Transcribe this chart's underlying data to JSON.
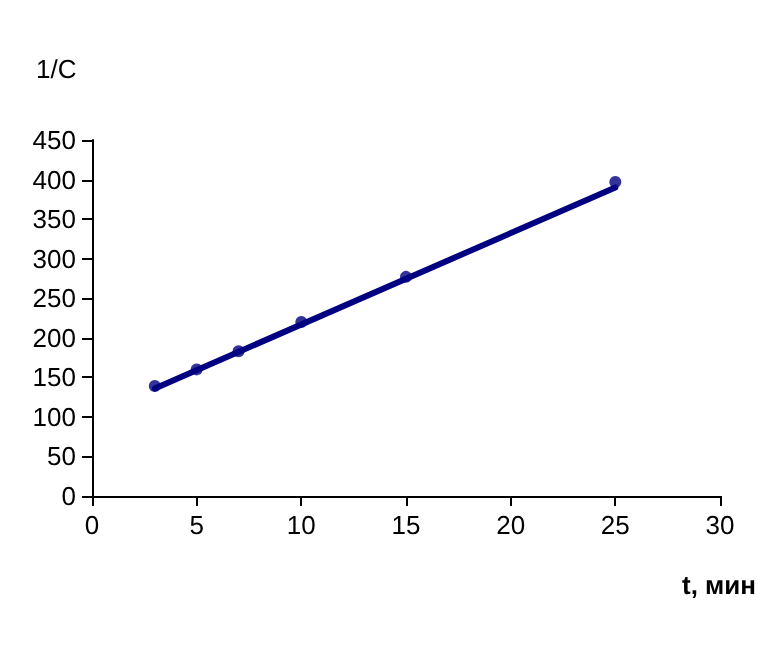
{
  "chart_data": {
    "type": "scatter",
    "ylabel": "1/C",
    "xlabel": "t, мин",
    "xlim": [
      0,
      30
    ],
    "xticks": [
      0,
      5,
      10,
      15,
      20,
      25,
      30
    ],
    "ylim": [
      0,
      450
    ],
    "yticks": [
      0,
      50,
      100,
      150,
      200,
      250,
      300,
      350,
      400,
      450
    ],
    "grid": false,
    "marker": "circle",
    "series": [
      {
        "color": "#000080",
        "x": [
          3,
          5,
          7,
          10,
          15,
          25
        ],
        "values": [
          139,
          160,
          183,
          220,
          277,
          397
        ]
      },
      {
        "type": "line",
        "color": "#000080",
        "x": [
          3,
          25
        ],
        "values": [
          136,
          390
        ],
        "marker": "none",
        "line_style": "solid"
      }
    ]
  }
}
